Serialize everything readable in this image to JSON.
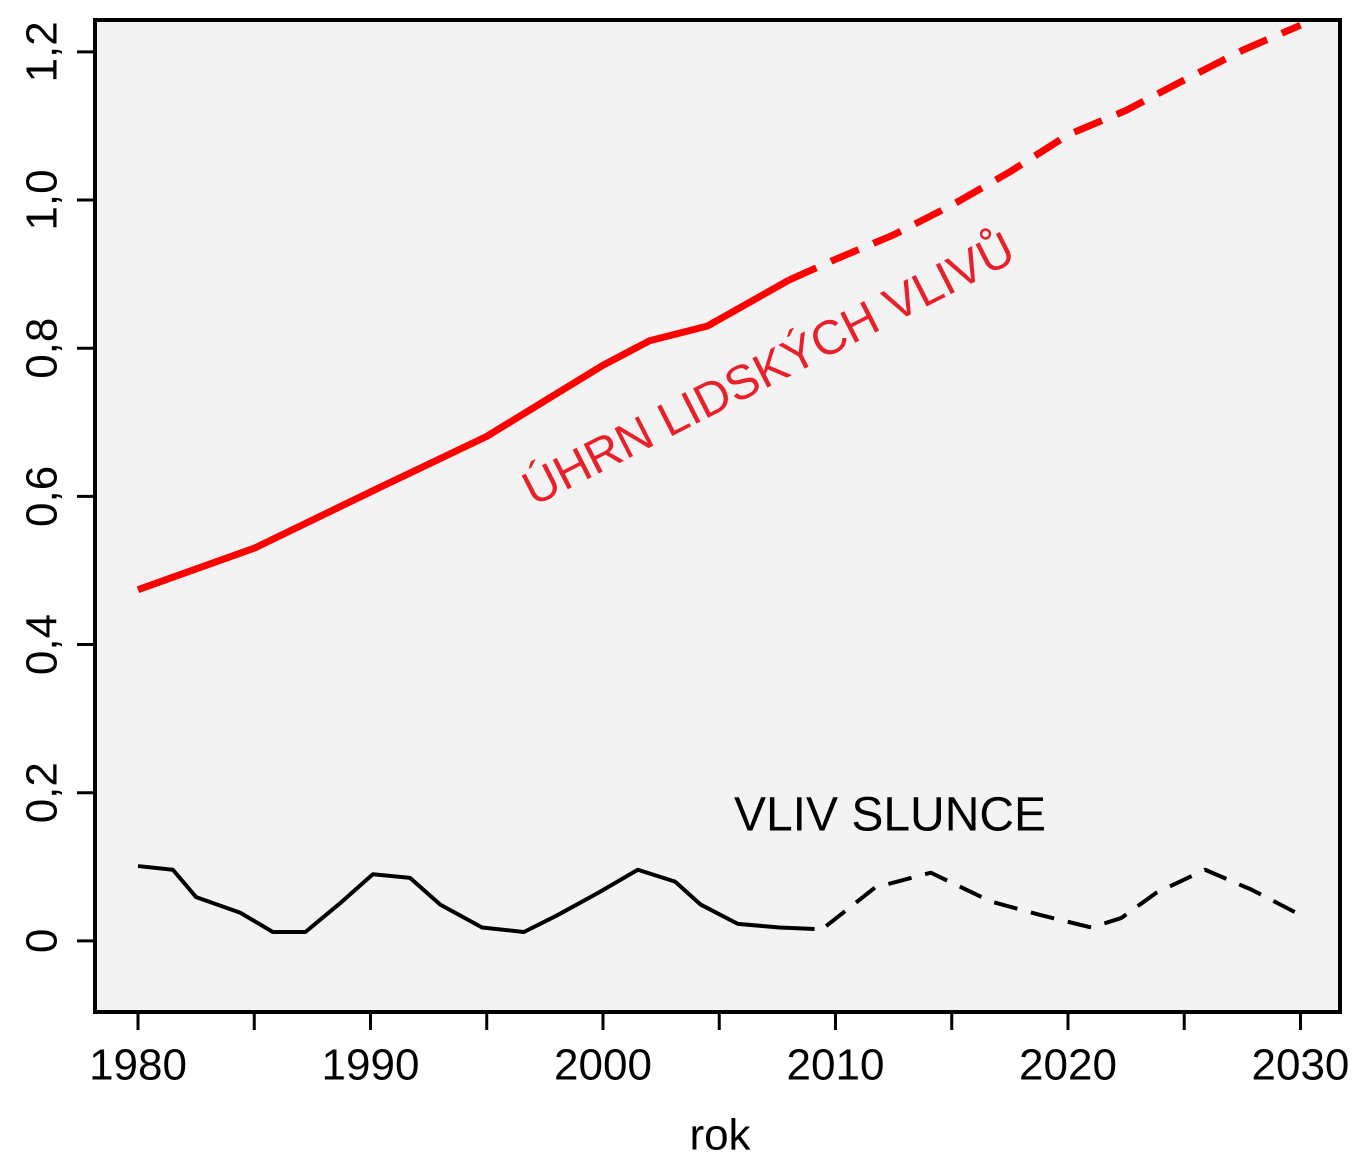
{
  "chart_data": {
    "type": "line",
    "xlabel": "rok",
    "xlim": [
      1978.15,
      2031.7
    ],
    "ylim": [
      -0.096,
      1.243
    ],
    "xticks": [
      1980,
      1990,
      2000,
      2010,
      2020,
      2030
    ],
    "xminorticks": [
      1985,
      1995,
      2005,
      2015,
      2025
    ],
    "yticks": [
      0,
      {
        "value": 0.2,
        "label": "0,2"
      },
      {
        "value": 0.4,
        "label": "0,4"
      },
      {
        "value": 0.6,
        "label": "0,6"
      },
      {
        "value": 0.8,
        "label": "0,8"
      },
      {
        "value": 1.0,
        "label": "1,0"
      },
      {
        "value": 1.2,
        "label": "1,2"
      }
    ],
    "background": "#f3f3f3",
    "series": [
      {
        "color": "#ff0000",
        "dashed": false,
        "width": 7,
        "x": [
          1980,
          1985,
          1990,
          1995,
          2000,
          2002,
          2004.5,
          2008
        ],
        "values": [
          0.474,
          0.53,
          0.606,
          0.681,
          0.777,
          0.81,
          0.83,
          0.892
        ]
      },
      {
        "color": "#ff0000",
        "dashed": true,
        "width": 7,
        "x": [
          2008,
          2010,
          2012.5,
          2015,
          2017.5,
          2020,
          2022.5,
          2025,
          2027.5,
          2030
        ],
        "values": [
          0.892,
          0.92,
          0.953,
          0.993,
          1.038,
          1.088,
          1.121,
          1.162,
          1.202,
          1.236
        ]
      },
      {
        "color": "#000000",
        "dashed": false,
        "width": 4,
        "x": [
          1980,
          1981.5,
          1982.5,
          1984.4,
          1985.8,
          1987.2,
          1988.7,
          1990.1,
          1991.7,
          1993,
          1994.8,
          1996.6,
          1998,
          1999.8,
          2001.5,
          2003.1,
          2004.2,
          2005.8,
          2007.6,
          2009.1
        ],
        "values": [
          0.101,
          0.096,
          0.059,
          0.038,
          0.012,
          0.012,
          0.051,
          0.09,
          0.085,
          0.049,
          0.018,
          0.012,
          0.034,
          0.065,
          0.096,
          0.08,
          0.049,
          0.023,
          0.018,
          0.016
        ]
      },
      {
        "color": "#000000",
        "dashed": true,
        "width": 4,
        "x": [
          2009.6,
          2011.7,
          2014.1,
          2016.7,
          2018.8,
          2021,
          2022.3,
          2023.8,
          2025.9,
          2027.9,
          2030
        ],
        "values": [
          0.02,
          0.072,
          0.092,
          0.053,
          0.035,
          0.018,
          0.031,
          0.065,
          0.096,
          0.069,
          0.035
        ]
      }
    ],
    "annotations": [
      {
        "text": "ÚHRN LIDSKÝCH VLIVŮ",
        "color": "#e8202a"
      },
      {
        "text": "VLIV SLUNCE",
        "color": "#000000"
      }
    ]
  }
}
